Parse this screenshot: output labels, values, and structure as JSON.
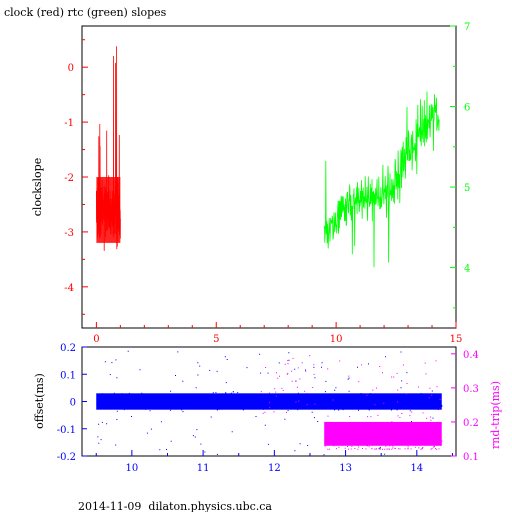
{
  "figure": {
    "title": "clock (red) rtc (green) slopes",
    "footer": "2014-11-09  dilaton.physics.ubc.ca"
  },
  "colors": {
    "clock": "#ff0000",
    "rtc": "#00ff00",
    "offset": "#0000ff",
    "roundtrip": "#ff00ff",
    "axis": "#000000"
  },
  "chart_data": [
    {
      "type": "line",
      "title": "clock (red) rtc (green) slopes",
      "xlabel": "",
      "ylabel": "clockslope",
      "y2label": "",
      "xlim": [
        -0.6,
        15
      ],
      "ylim": [
        -4.75,
        0.75
      ],
      "y2lim": [
        3.25,
        7
      ],
      "xticks": [
        "0",
        "5",
        "10",
        "15"
      ],
      "yticks": [
        "0",
        "-1",
        "-2",
        "-3",
        "-4"
      ],
      "y2ticks": [
        "7",
        "6",
        "5",
        "4"
      ],
      "grid": false,
      "series": [
        {
          "name": "clock",
          "color": "#ff0000",
          "axis": "left",
          "x_range": [
            0,
            1.0
          ],
          "y_band": [
            -3.2,
            -2.0
          ],
          "y_spread": [
            -4.5,
            0.4
          ]
        },
        {
          "name": "rtc",
          "color": "#00ff00",
          "axis": "right",
          "x_range": [
            9.5,
            14.3
          ],
          "y_start": 4.45,
          "y_end": 5.65,
          "y_spread": [
            3.35,
            6.85
          ]
        }
      ]
    },
    {
      "type": "scatter",
      "xlabel": "",
      "ylabel": "offset(ms)",
      "y2label": "rnd-trip(ms)",
      "xlim": [
        9.3,
        14.55
      ],
      "ylim": [
        -0.2,
        0.2
      ],
      "y2lim": [
        0.1,
        0.42
      ],
      "xticks": [
        "10",
        "11",
        "12",
        "13",
        "14"
      ],
      "yticks": [
        "0.2",
        "0.1",
        "0",
        "-0.1",
        "-0.2"
      ],
      "y2ticks": [
        "0.4",
        "0.3",
        "0.2",
        "0.1"
      ],
      "grid": false,
      "series": [
        {
          "name": "offset",
          "color": "#0000ff",
          "axis": "left",
          "x_range": [
            9.5,
            14.35
          ],
          "y_band": [
            -0.03,
            0.03
          ],
          "y_spread": [
            -0.2,
            0.2
          ]
        },
        {
          "name": "rnd-trip",
          "color": "#ff00ff",
          "axis": "right",
          "x_range": [
            12.7,
            14.35
          ],
          "y_band": [
            0.13,
            0.2
          ],
          "y_spread": [
            0.12,
            0.38
          ]
        }
      ]
    }
  ]
}
